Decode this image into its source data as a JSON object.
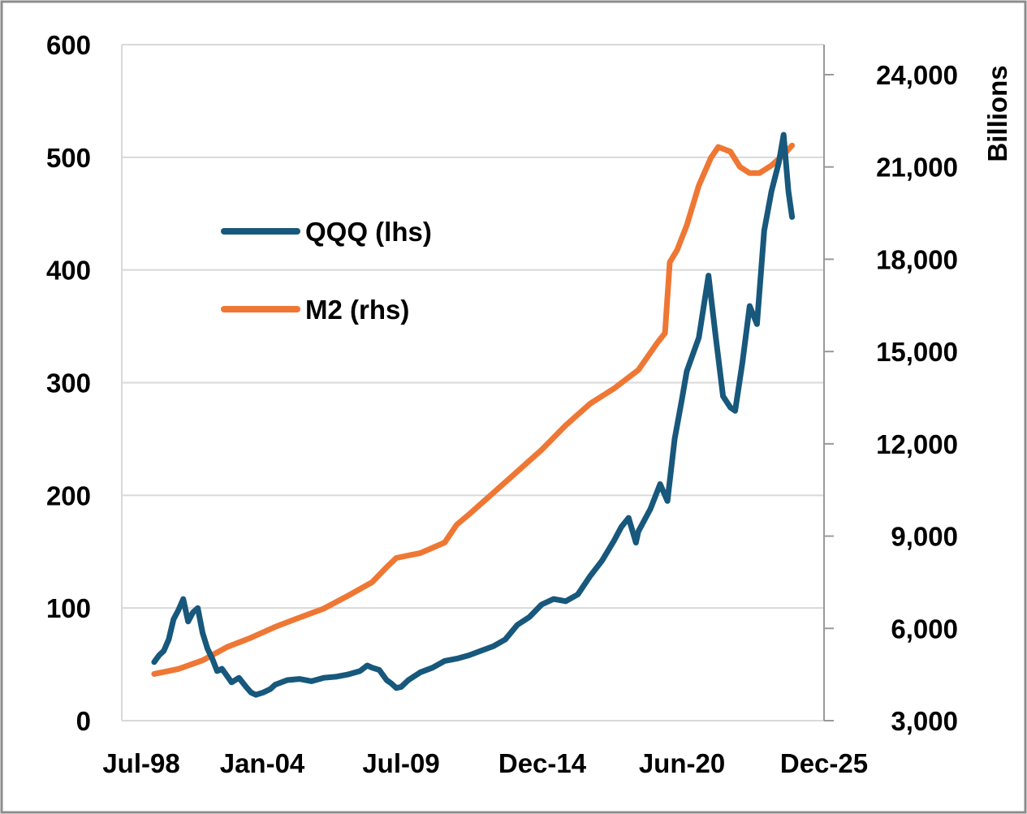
{
  "chart_data": {
    "type": "line",
    "x_tick_labels": [
      "Jul-98",
      "Jan-04",
      "Jul-09",
      "Dec-14",
      "Jun-20",
      "Dec-25"
    ],
    "y_left": {
      "ticks": [
        0,
        100,
        200,
        300,
        400,
        500,
        600
      ],
      "ylim": [
        0,
        600
      ]
    },
    "y_right": {
      "ticks": [
        "3,000",
        "6,000",
        "9,000",
        "12,000",
        "15,000",
        "18,000",
        "21,000",
        "24,000"
      ],
      "ylim": [
        3000,
        25000
      ],
      "label": "Billions"
    },
    "grid": true,
    "legend_position": "upper-left",
    "colors": {
      "QQQ": "#17587c",
      "M2": "#ef7734",
      "grid": "#d9d9d9",
      "axis": "#9a9a9a"
    },
    "series": [
      {
        "name": "QQQ (lhs)",
        "axis": "left",
        "points": [
          [
            1999.0,
            52
          ],
          [
            1999.2,
            58
          ],
          [
            1999.4,
            62
          ],
          [
            1999.6,
            72
          ],
          [
            1999.8,
            90
          ],
          [
            2000.0,
            98
          ],
          [
            2000.2,
            108
          ],
          [
            2000.4,
            88
          ],
          [
            2000.6,
            96
          ],
          [
            2000.8,
            100
          ],
          [
            2001.0,
            78
          ],
          [
            2001.2,
            64
          ],
          [
            2001.4,
            55
          ],
          [
            2001.6,
            44
          ],
          [
            2001.8,
            46
          ],
          [
            2002.0,
            40
          ],
          [
            2002.2,
            34
          ],
          [
            2002.5,
            38
          ],
          [
            2002.8,
            30
          ],
          [
            2003.0,
            25
          ],
          [
            2003.2,
            23
          ],
          [
            2003.5,
            25
          ],
          [
            2003.8,
            28
          ],
          [
            2004.0,
            32
          ],
          [
            2004.5,
            36
          ],
          [
            2005.0,
            37
          ],
          [
            2005.5,
            35
          ],
          [
            2006.0,
            38
          ],
          [
            2006.5,
            39
          ],
          [
            2007.0,
            41
          ],
          [
            2007.5,
            44
          ],
          [
            2007.8,
            49
          ],
          [
            2008.0,
            47
          ],
          [
            2008.3,
            45
          ],
          [
            2008.6,
            36
          ],
          [
            2008.8,
            33
          ],
          [
            2009.0,
            29
          ],
          [
            2009.2,
            30
          ],
          [
            2009.5,
            36
          ],
          [
            2010.0,
            43
          ],
          [
            2010.5,
            47
          ],
          [
            2011.0,
            53
          ],
          [
            2011.5,
            55
          ],
          [
            2012.0,
            58
          ],
          [
            2012.5,
            62
          ],
          [
            2013.0,
            66
          ],
          [
            2013.5,
            72
          ],
          [
            2014.0,
            85
          ],
          [
            2014.5,
            92
          ],
          [
            2015.0,
            103
          ],
          [
            2015.5,
            108
          ],
          [
            2016.0,
            106
          ],
          [
            2016.5,
            112
          ],
          [
            2017.0,
            128
          ],
          [
            2017.5,
            142
          ],
          [
            2018.0,
            160
          ],
          [
            2018.3,
            172
          ],
          [
            2018.6,
            180
          ],
          [
            2018.9,
            158
          ],
          [
            2019.0,
            168
          ],
          [
            2019.5,
            188
          ],
          [
            2019.9,
            210
          ],
          [
            2020.2,
            195
          ],
          [
            2020.5,
            250
          ],
          [
            2020.8,
            285
          ],
          [
            2021.0,
            310
          ],
          [
            2021.5,
            340
          ],
          [
            2021.9,
            395
          ],
          [
            2022.2,
            340
          ],
          [
            2022.5,
            288
          ],
          [
            2022.8,
            278
          ],
          [
            2023.0,
            275
          ],
          [
            2023.3,
            318
          ],
          [
            2023.6,
            368
          ],
          [
            2023.9,
            352
          ],
          [
            2024.2,
            435
          ],
          [
            2024.5,
            470
          ],
          [
            2024.8,
            495
          ],
          [
            2025.0,
            520
          ],
          [
            2025.2,
            470
          ],
          [
            2025.35,
            447
          ]
        ]
      },
      {
        "name": "M2 (rhs)",
        "axis": "right",
        "points": [
          [
            1999.0,
            4520
          ],
          [
            2000.0,
            4680
          ],
          [
            2001.0,
            4960
          ],
          [
            2002.0,
            5390
          ],
          [
            2003.0,
            5700
          ],
          [
            2004.0,
            6050
          ],
          [
            2005.0,
            6350
          ],
          [
            2006.0,
            6640
          ],
          [
            2007.0,
            7060
          ],
          [
            2008.0,
            7500
          ],
          [
            2008.6,
            7990
          ],
          [
            2009.0,
            8290
          ],
          [
            2010.0,
            8450
          ],
          [
            2011.0,
            8790
          ],
          [
            2011.5,
            9370
          ],
          [
            2012.0,
            9700
          ],
          [
            2013.0,
            10400
          ],
          [
            2014.0,
            11100
          ],
          [
            2015.0,
            11800
          ],
          [
            2016.0,
            12600
          ],
          [
            2017.0,
            13300
          ],
          [
            2018.0,
            13800
          ],
          [
            2019.0,
            14400
          ],
          [
            2019.8,
            15300
          ],
          [
            2020.1,
            15600
          ],
          [
            2020.3,
            17900
          ],
          [
            2020.6,
            18300
          ],
          [
            2021.0,
            19100
          ],
          [
            2021.5,
            20400
          ],
          [
            2022.0,
            21300
          ],
          [
            2022.3,
            21650
          ],
          [
            2022.8,
            21500
          ],
          [
            2023.2,
            21000
          ],
          [
            2023.6,
            20800
          ],
          [
            2024.0,
            20800
          ],
          [
            2024.5,
            21050
          ],
          [
            2025.0,
            21400
          ],
          [
            2025.35,
            21700
          ]
        ]
      }
    ]
  }
}
